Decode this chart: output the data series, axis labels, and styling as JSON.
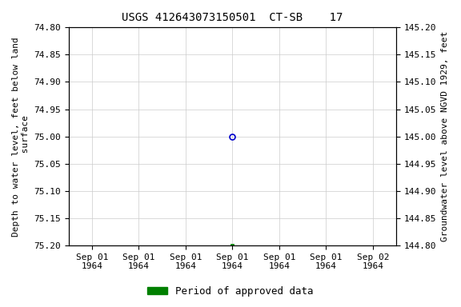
{
  "title": "USGS 412643073150501  CT-SB    17",
  "ylabel_left": "Depth to water level, feet below land\n surface",
  "ylabel_right": "Groundwater level above NGVD 1929, feet",
  "ylim_left": [
    75.2,
    74.8
  ],
  "ylim_right": [
    144.8,
    145.2
  ],
  "yticks_left": [
    74.8,
    74.85,
    74.9,
    74.95,
    75.0,
    75.05,
    75.1,
    75.15,
    75.2
  ],
  "yticks_right": [
    144.8,
    144.85,
    144.9,
    144.95,
    145.0,
    145.05,
    145.1,
    145.15,
    145.2
  ],
  "data_point_open": {
    "depth": 75.0
  },
  "data_point_filled": {
    "depth": 75.2
  },
  "n_ticks": 7,
  "xtick_labels": [
    "Sep 01\n1964",
    "Sep 01\n1964",
    "Sep 01\n1964",
    "Sep 01\n1964",
    "Sep 01\n1964",
    "Sep 01\n1964",
    "Sep 02\n1964"
  ],
  "data_tick_index": 3,
  "open_marker_color": "#0000cc",
  "filled_marker_color": "#008000",
  "legend_label": "Period of approved data",
  "legend_color": "#008000",
  "bg_color": "#ffffff",
  "grid_color": "#cccccc",
  "title_fontsize": 10,
  "label_fontsize": 8,
  "tick_fontsize": 8
}
